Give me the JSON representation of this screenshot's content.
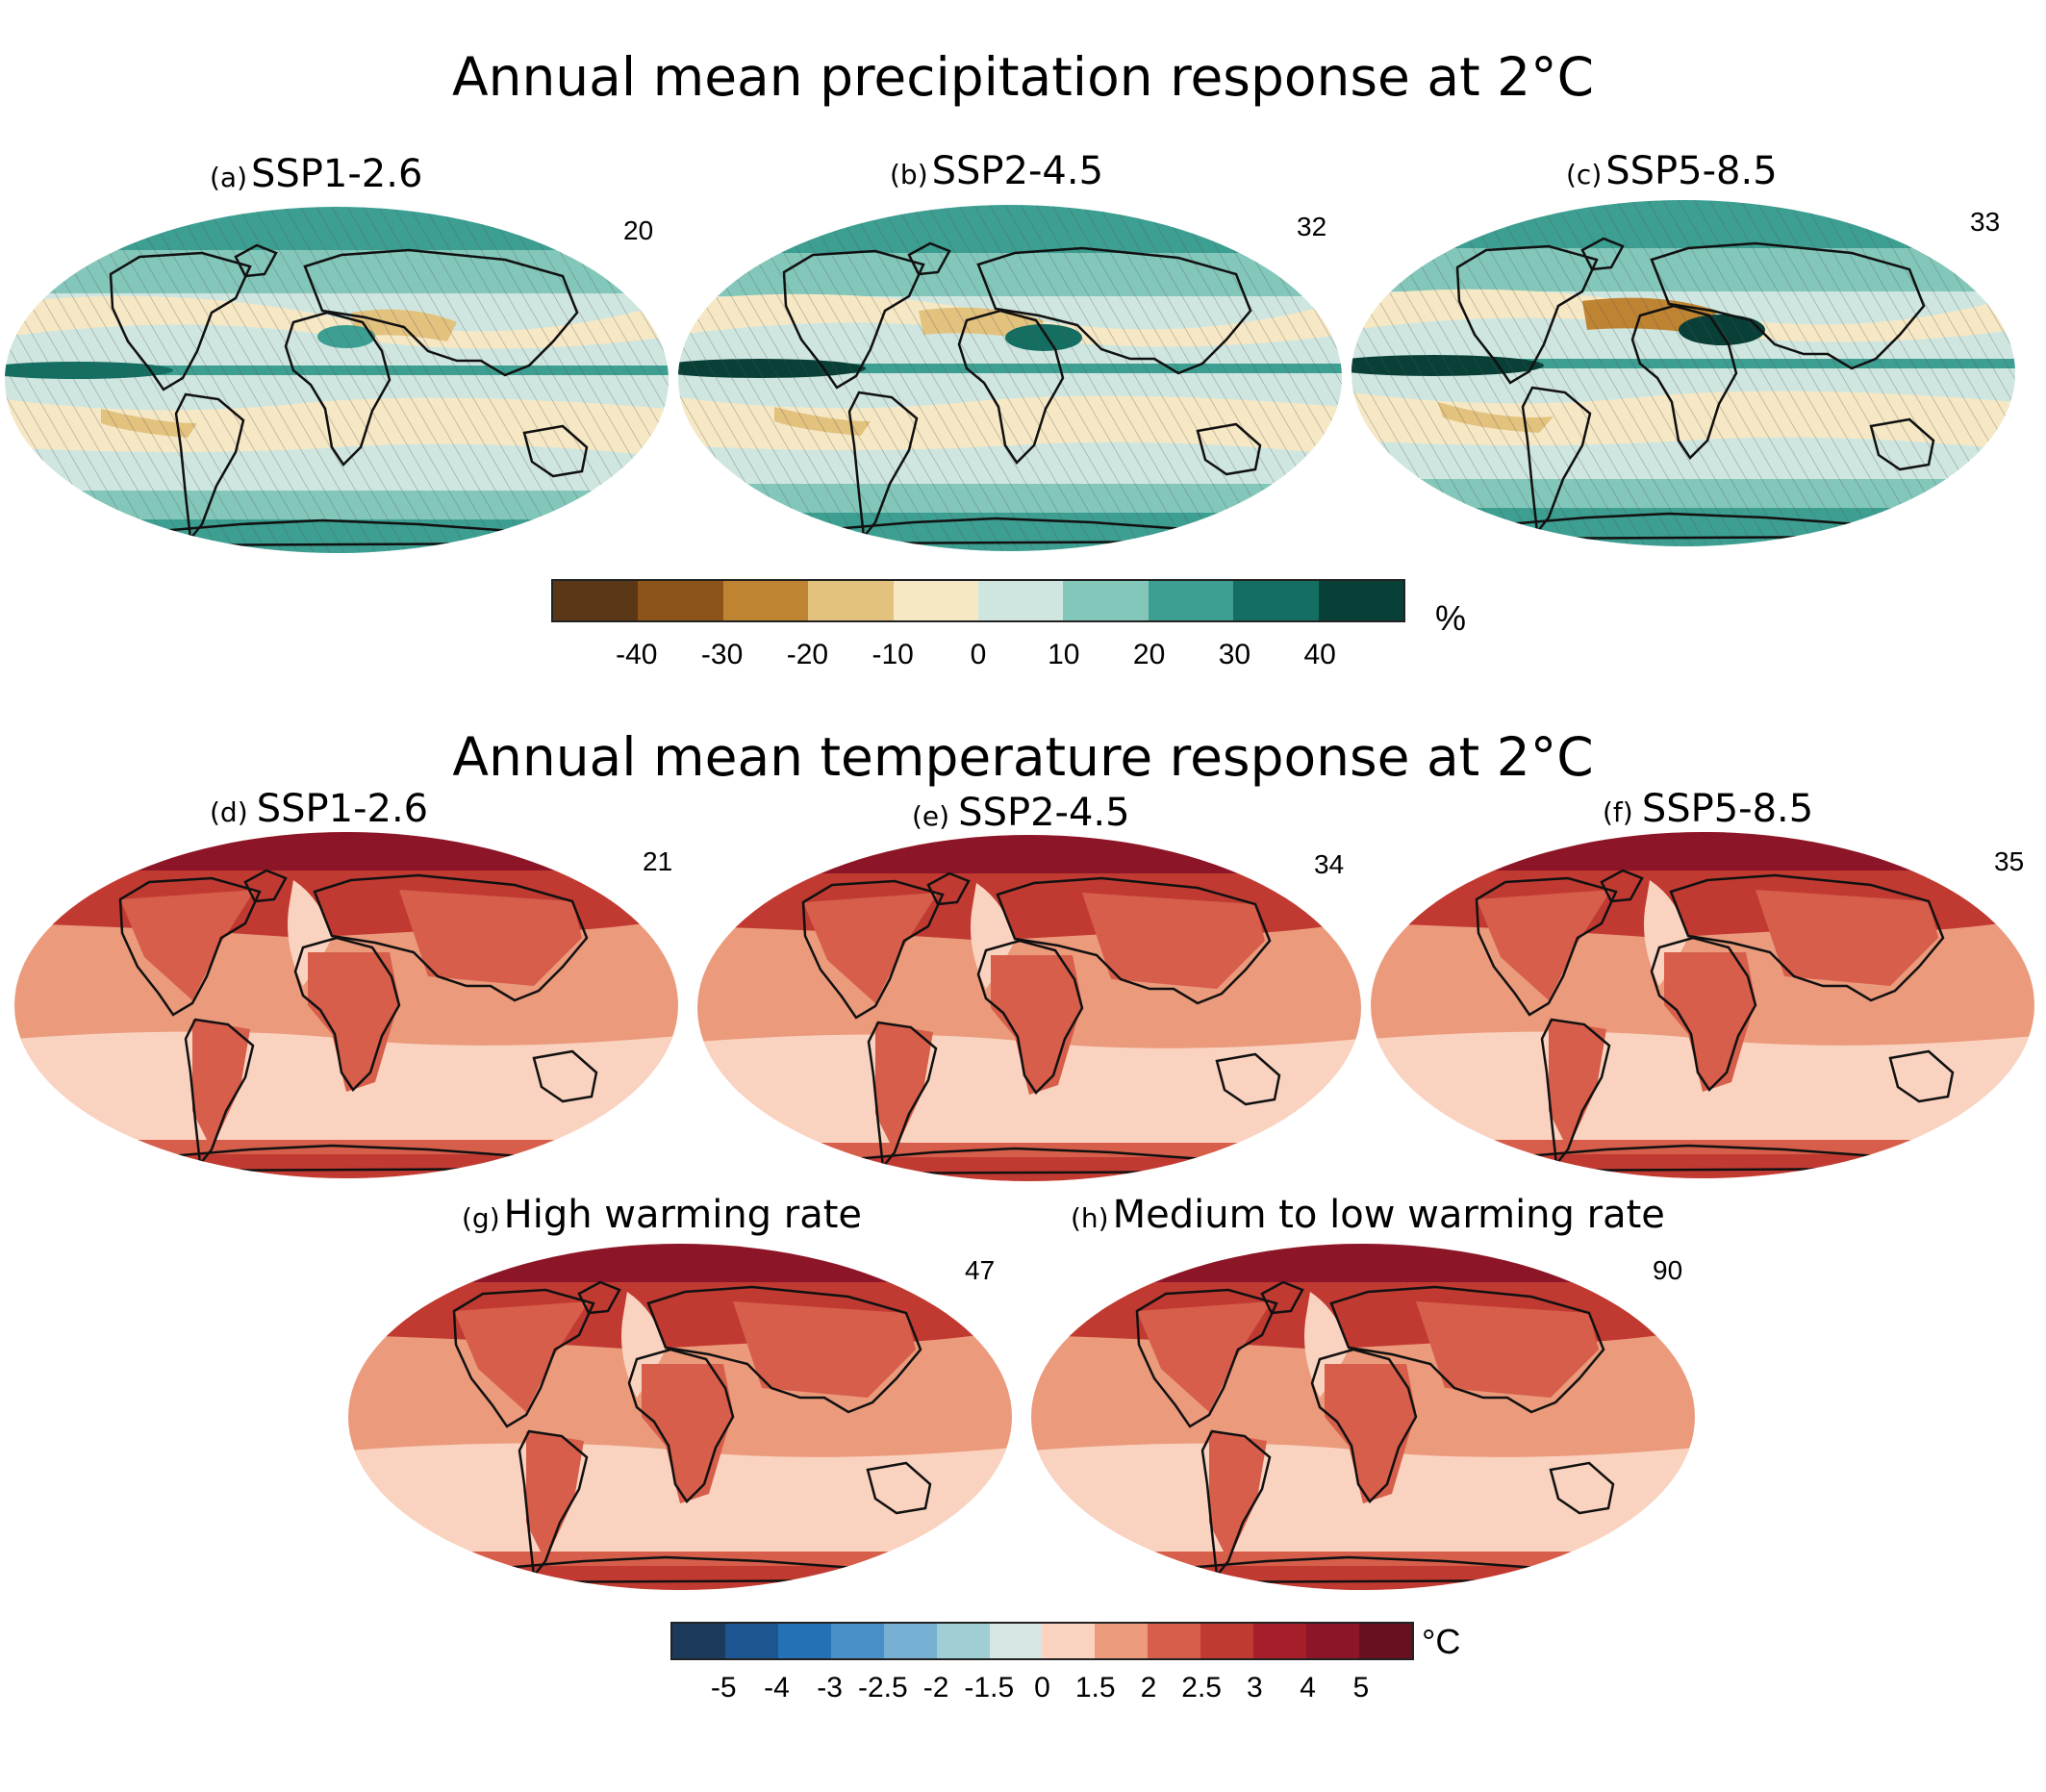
{
  "precip": {
    "title": "Annual mean precipitation response at 2°C",
    "panels": [
      {
        "letter": "(a)",
        "name": "SSP1-2.6",
        "count": "20"
      },
      {
        "letter": "(b)",
        "name": "SSP2-4.5",
        "count": "32"
      },
      {
        "letter": "(c)",
        "name": "SSP5-8.5",
        "count": "33"
      }
    ],
    "colorbar": {
      "colors": [
        "#5a3716",
        "#8c5418",
        "#bf8431",
        "#e3c27e",
        "#f6e8c4",
        "#cfe6e0",
        "#83c7ba",
        "#3c9f91",
        "#146e62",
        "#083f37"
      ],
      "ticks": [
        "-40",
        "-30",
        "-20",
        "-10",
        "0",
        "10",
        "20",
        "30",
        "40"
      ],
      "unit": "%"
    }
  },
  "temp": {
    "title": "Annual mean temperature response at 2°C",
    "panels": [
      {
        "letter": "(d)",
        "name": "SSP1-2.6",
        "count": "21"
      },
      {
        "letter": "(e)",
        "name": "SSP2-4.5",
        "count": "34"
      },
      {
        "letter": "(f)",
        "name": "SSP5-8.5",
        "count": "35"
      },
      {
        "letter": "(g)",
        "name": "High warming rate",
        "count": "47"
      },
      {
        "letter": "(h)",
        "name": "Medium to low warming rate",
        "count": "90"
      }
    ],
    "colorbar": {
      "colors": [
        "#1b3a5c",
        "#1c5590",
        "#2471b5",
        "#4a90c8",
        "#78b0d4",
        "#9fcfd4",
        "#d5e6e4",
        "#fad3c0",
        "#eb9a7c",
        "#d65e4a",
        "#c13a32",
        "#a61e2a",
        "#8c1628",
        "#67101f"
      ],
      "ticks": [
        "-5",
        "-4",
        "-3",
        "-2.5",
        "-2",
        "-1.5",
        "0",
        "1.5",
        "2",
        "2.5",
        "3",
        "4",
        "5"
      ],
      "unit": "°C"
    }
  }
}
